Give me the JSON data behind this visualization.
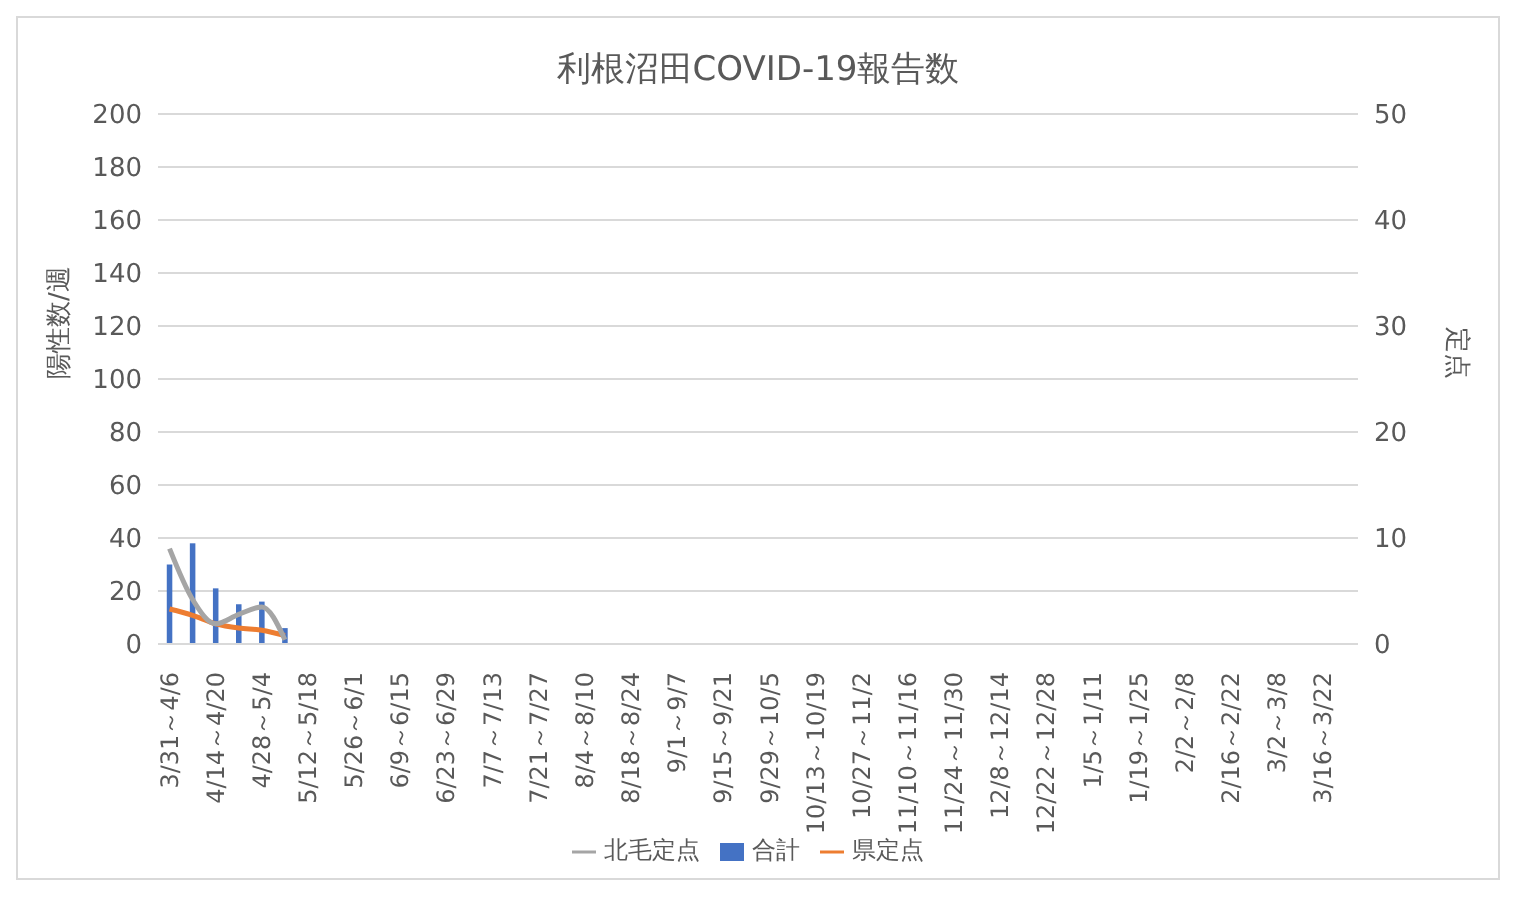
{
  "chart_data": {
    "type": "bar",
    "title": "利根沼田COVID-19報告数",
    "ylabel": "陽性数/週",
    "y2label": "定点",
    "categories": [
      "3/31～4/6",
      null,
      "4/14～4/20",
      null,
      "4/28～5/4",
      null,
      "5/12～5/18",
      null,
      "5/26～6/1",
      null,
      "6/9～6/15",
      null,
      "6/23～6/29",
      null,
      "7/7～7/13",
      null,
      "7/21～7/27",
      null,
      "8/4～8/10",
      null,
      "8/18～8/24",
      null,
      "9/1～9/7",
      null,
      "9/15～9/21",
      null,
      "9/29～10/5",
      null,
      "10/13～10/19",
      null,
      "10/27～11/2",
      null,
      "11/10～11/16",
      null,
      "11/24～11/30",
      null,
      "12/8～12/14",
      null,
      "12/22～12/28",
      null,
      "1/5～1/11",
      null,
      "1/19～1/25",
      null,
      "2/2～2/8",
      null,
      "2/16～2/22",
      null,
      "3/2～3/8",
      null,
      "3/16～3/22",
      null
    ],
    "series": [
      {
        "name": "合計",
        "type": "bar",
        "color": "#4472c4",
        "values": [
          30,
          38,
          21,
          15,
          16,
          6,
          null,
          null,
          null,
          null,
          null,
          null,
          null,
          null,
          null,
          null,
          null,
          null,
          null,
          null,
          null,
          null,
          null,
          null,
          null,
          null,
          null,
          null,
          null,
          null,
          null,
          null,
          null,
          null,
          null,
          null,
          null,
          null,
          null,
          null,
          null,
          null,
          null,
          null,
          null,
          null,
          null,
          null,
          null,
          null,
          null,
          null
        ]
      },
      {
        "name": "県定点",
        "type": "line",
        "axis": "y2",
        "color": "#ed7d31",
        "values": [
          3.3,
          2.7,
          1.9,
          1.5,
          1.3,
          0.8,
          null,
          null,
          null,
          null,
          null,
          null,
          null,
          null,
          null,
          null,
          null,
          null,
          null,
          null,
          null,
          null,
          null,
          null,
          null,
          null,
          null,
          null,
          null,
          null,
          null,
          null,
          null,
          null,
          null,
          null,
          null,
          null,
          null,
          null,
          null,
          null,
          null,
          null,
          null,
          null,
          null,
          null,
          null,
          null,
          null,
          null
        ]
      },
      {
        "name": "北毛定点",
        "type": "line",
        "axis": "y2",
        "color": "#a5a5a5",
        "values": [
          9.0,
          4.2,
          1.9,
          2.8,
          3.5,
          0.4,
          null,
          null,
          null,
          null,
          null,
          null,
          null,
          null,
          null,
          null,
          null,
          null,
          null,
          null,
          null,
          null,
          null,
          null,
          null,
          null,
          null,
          null,
          null,
          null,
          null,
          null,
          null,
          null,
          null,
          null,
          null,
          null,
          null,
          null,
          null,
          null,
          null,
          null,
          null,
          null,
          null,
          null,
          null,
          null,
          null,
          null
        ]
      }
    ],
    "ylim": [
      0,
      200
    ],
    "yticks": [
      0,
      20,
      40,
      60,
      80,
      100,
      120,
      140,
      160,
      180,
      200
    ],
    "y2lim": [
      0,
      50
    ],
    "y2ticks": [
      0,
      10,
      20,
      30,
      40,
      50
    ],
    "grid": "y",
    "legend": "bottom",
    "marker": "none",
    "line_style": "solid"
  }
}
